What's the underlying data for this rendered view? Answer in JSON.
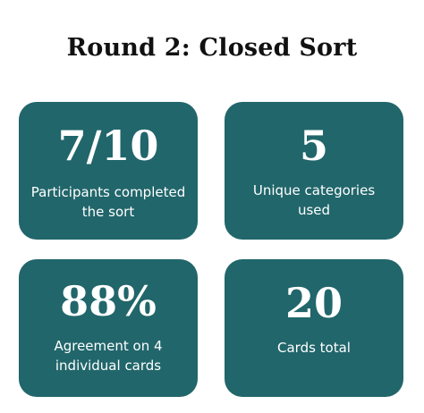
{
  "title": "Round 2: Closed Sort",
  "stats": [
    {
      "value": "7/10",
      "label": "Participants completed the sort"
    },
    {
      "value": "5",
      "label": "Unique categories used"
    },
    {
      "value": "88%",
      "label": "Agreement on 4 individual cards"
    },
    {
      "value": "20",
      "label": "Cards total"
    }
  ],
  "colors": {
    "card_background": "#21666b",
    "card_text": "#ffffff",
    "title_text": "#111111"
  }
}
